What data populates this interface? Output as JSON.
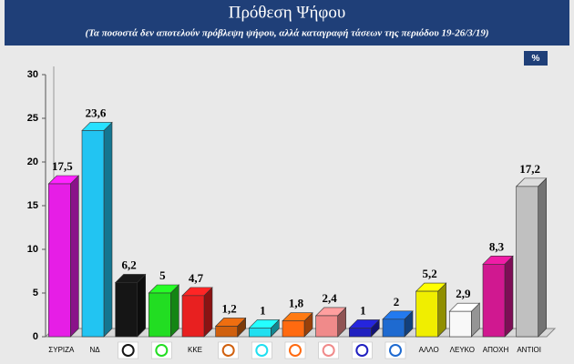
{
  "chart_data": {
    "type": "bar3d",
    "title": "Πρόθεση Ψήφου",
    "subtitle": "(Τα ποσοστά δεν αποτελούν πρόβλεψη ψήφου, αλλά καταγραφή τάσεων της περιόδου 19-26/3/19)",
    "annotation": "%",
    "categories": [
      "ΣΥΡΙΖΑ",
      "ΝΔ",
      null,
      null,
      "ΚΚΕ",
      null,
      null,
      null,
      null,
      null,
      null,
      "ΑΛΛΟ",
      "ΛΕΥΚΟ",
      "ΑΠΟΧΗ",
      "ΑΝΤΙΟΙ"
    ],
    "values": [
      17.5,
      23.6,
      6.2,
      5,
      4.7,
      1.2,
      1,
      1.8,
      2.4,
      1,
      2,
      5.2,
      2.9,
      8.3,
      17.2
    ],
    "value_labels": [
      "17,5",
      "23,6",
      "6,2",
      "5",
      "4,7",
      "1,2",
      "1",
      "1,8",
      "2,4",
      "1",
      "2",
      "5,2",
      "2,9",
      "8,3",
      "17,2"
    ],
    "colors": [
      "#e61ee6",
      "#22c4f2",
      "#151515",
      "#22dd22",
      "#e82020",
      "#d0600e",
      "#20dff0",
      "#ff6a10",
      "#f08a8a",
      "#2020c0",
      "#1e6ad0",
      "#f0ee00",
      "#f8f8f8",
      "#d01890",
      "#c0c0c0"
    ],
    "ylim": [
      0,
      30
    ],
    "yticks": [
      0,
      5,
      10,
      15,
      20,
      25,
      30
    ],
    "grid": false
  }
}
